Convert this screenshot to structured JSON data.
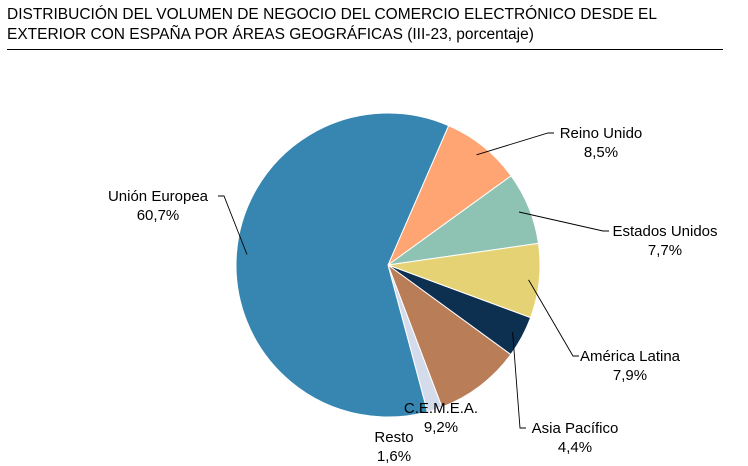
{
  "title": {
    "line1": "DISTRIBUCIÓN DEL VOLUMEN DE NEGOCIO DEL COMERCIO ELECTRÓNICO DESDE EL",
    "line2": "EXTERIOR CON ESPAÑA POR ÁREAS GEOGRÁFICAS (III-23, porcentaje)"
  },
  "chart_data": {
    "type": "pie",
    "title": "DISTRIBUCIÓN DEL VOLUMEN DE NEGOCIO DEL COMERCIO ELECTRÓNICO DESDE EL EXTERIOR CON ESPAÑA POR ÁREAS GEOGRÁFICAS (III-23, porcentaje)",
    "legend": "none (data labels with leader lines)",
    "slices": [
      {
        "label": "Reino Unido",
        "value": 8.5,
        "value_text": "8,5%",
        "color": "#FFA574"
      },
      {
        "label": "Estados Unidos",
        "value": 7.7,
        "value_text": "7,7%",
        "color": "#8EC3B4"
      },
      {
        "label": "América Latina",
        "value": 7.9,
        "value_text": "7,9%",
        "color": "#E5D274"
      },
      {
        "label": "Asia Pacífico",
        "value": 4.4,
        "value_text": "4,4%",
        "color": "#0D2F50"
      },
      {
        "label": "C.E.M.E.A.",
        "value": 9.2,
        "value_text": "9,2%",
        "color": "#B97D57"
      },
      {
        "label": "Resto",
        "value": 1.6,
        "value_text": "1,6%",
        "color": "#D4DCEB"
      },
      {
        "label": "Unión Europea",
        "value": 60.7,
        "value_text": "60,7%",
        "color": "#3686B1"
      }
    ]
  }
}
